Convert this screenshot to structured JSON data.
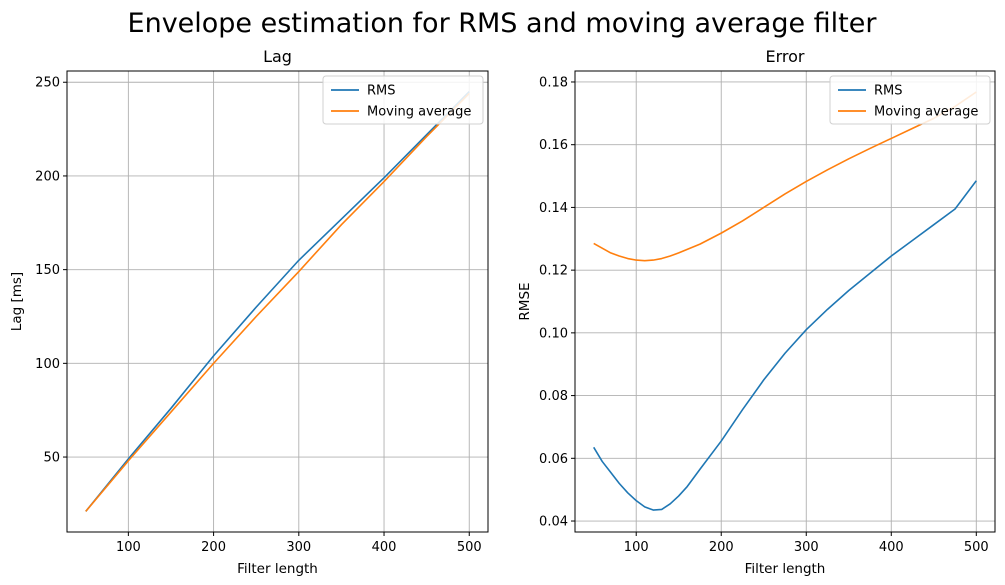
{
  "figure_title": "Envelope estimation for RMS and moving average filter",
  "colors": {
    "RMS": "#1f77b4",
    "Moving average": "#ff7f0e"
  },
  "chart_data": [
    {
      "type": "line",
      "title": "Lag",
      "xlabel": "Filter length",
      "ylabel": "Lag [ms]",
      "xlim": [
        28,
        522
      ],
      "ylim": [
        10,
        256
      ],
      "xticks": [
        100,
        200,
        300,
        400,
        500
      ],
      "yticks": [
        50,
        100,
        150,
        200,
        250
      ],
      "grid": true,
      "legend": "top-right",
      "series": [
        {
          "name": "RMS",
          "x": [
            50,
            100,
            150,
            200,
            250,
            300,
            350,
            400,
            450,
            500
          ],
          "y": [
            21,
            49,
            76,
            104,
            130,
            155,
            177,
            199,
            222,
            245
          ]
        },
        {
          "name": "Moving average",
          "x": [
            50,
            100,
            150,
            200,
            250,
            300,
            350,
            400,
            450,
            500
          ],
          "y": [
            21,
            48,
            74,
            100,
            125,
            149,
            174,
            197,
            221,
            244
          ]
        }
      ]
    },
    {
      "type": "line",
      "title": "Error",
      "xlabel": "Filter length",
      "ylabel": "RMSE",
      "xlim": [
        28,
        522
      ],
      "ylim": [
        0.0365,
        0.1835
      ],
      "xticks": [
        100,
        200,
        300,
        400,
        500
      ],
      "yticks": [
        0.04,
        0.06,
        0.08,
        0.1,
        0.12,
        0.14,
        0.16,
        0.18
      ],
      "ytick_labels": [
        "0.04",
        "0.06",
        "0.08",
        "0.10",
        "0.12",
        "0.14",
        "0.16",
        "0.18"
      ],
      "grid": true,
      "legend": "top-right",
      "series": [
        {
          "name": "RMS",
          "x": [
            50,
            60,
            70,
            80,
            90,
            100,
            110,
            120,
            130,
            140,
            150,
            160,
            175,
            200,
            225,
            250,
            275,
            300,
            325,
            350,
            375,
            400,
            425,
            450,
            475,
            500
          ],
          "y": [
            0.0635,
            0.059,
            0.0555,
            0.052,
            0.049,
            0.0465,
            0.0445,
            0.0435,
            0.0437,
            0.0455,
            0.048,
            0.051,
            0.0565,
            0.0655,
            0.0755,
            0.085,
            0.0935,
            0.101,
            0.1075,
            0.1135,
            0.119,
            0.1245,
            0.1295,
            0.1345,
            0.1395,
            0.1485
          ]
        },
        {
          "name": "Moving average",
          "x": [
            50,
            60,
            70,
            80,
            90,
            100,
            110,
            120,
            130,
            140,
            150,
            175,
            200,
            225,
            250,
            275,
            300,
            325,
            350,
            375,
            400,
            425,
            450,
            475,
            500
          ],
          "y": [
            0.1285,
            0.127,
            0.1255,
            0.1245,
            0.1237,
            0.1232,
            0.123,
            0.1232,
            0.1237,
            0.1245,
            0.1255,
            0.1283,
            0.1318,
            0.1357,
            0.14,
            0.1443,
            0.1483,
            0.152,
            0.1555,
            0.1588,
            0.162,
            0.1652,
            0.1684,
            0.1722,
            0.1768
          ]
        }
      ]
    }
  ]
}
